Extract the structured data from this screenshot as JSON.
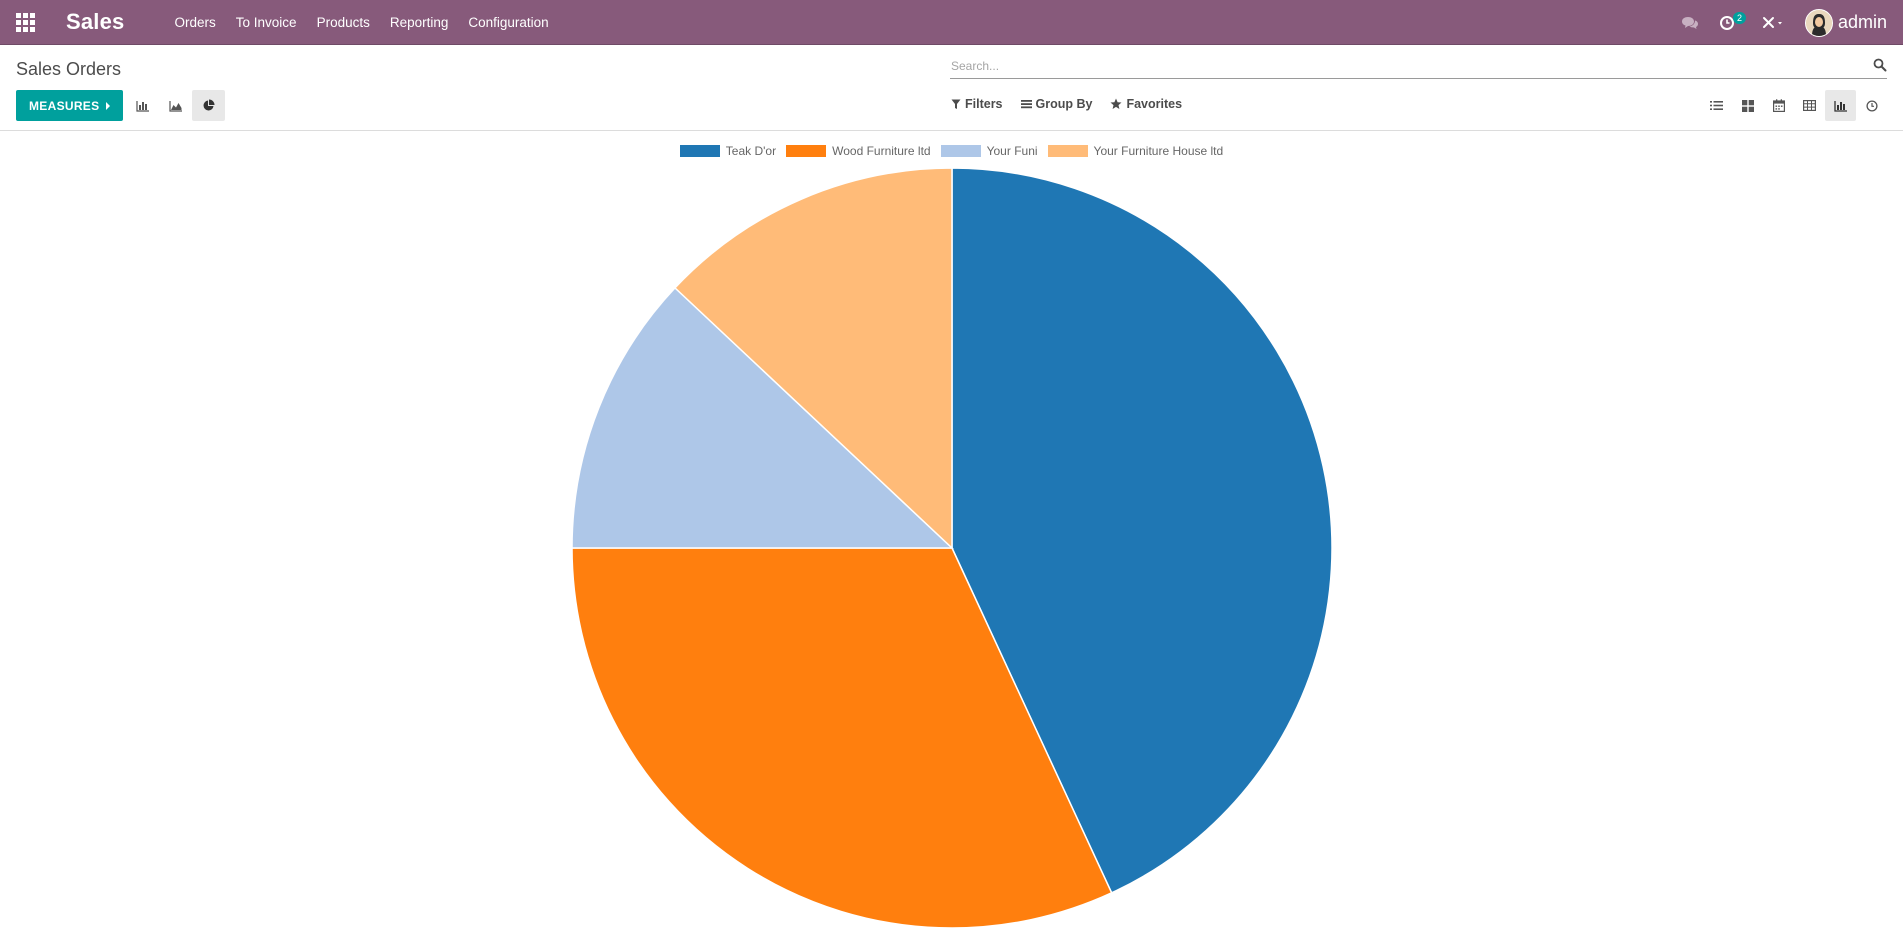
{
  "navbar": {
    "app_title": "Sales",
    "menu": [
      "Orders",
      "To Invoice",
      "Products",
      "Reporting",
      "Configuration"
    ],
    "activity_count": "2",
    "user_name": "admin"
  },
  "control_panel": {
    "title": "Sales Orders",
    "search_placeholder": "Search...",
    "measures_label": "MEASURES",
    "filters_label": "Filters",
    "group_by_label": "Group By",
    "favorites_label": "Favorites",
    "active_chart_type": "pie",
    "active_view": "graph"
  },
  "colors": {
    "navbar": "#875a7b",
    "primary": "#00a09d"
  },
  "chart_data": {
    "type": "pie",
    "categories": [
      "Teak D'or",
      "Wood Furniture ltd",
      "Your Funi",
      "Your Furniture House ltd"
    ],
    "values": [
      43.1,
      31.9,
      12.0,
      13.0
    ],
    "colors": [
      "#1f77b4",
      "#ff7f0e",
      "#aec7e8",
      "#ffbb78"
    ],
    "legend_position": "top"
  }
}
